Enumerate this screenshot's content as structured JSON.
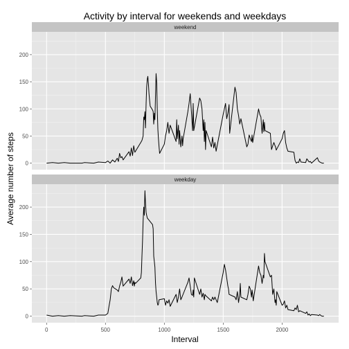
{
  "chart_data": {
    "type": "line",
    "title": "Activity by interval for weekends and weekdays",
    "xlabel": "Interval",
    "ylabel": "Average number of steps",
    "xlim": [
      -125,
      2480
    ],
    "ylim": [
      -12,
      242
    ],
    "x_ticks": [
      0,
      500,
      1000,
      1500,
      2000
    ],
    "y_ticks": [
      0,
      50,
      100,
      150,
      200
    ],
    "grid": true,
    "facet_layout": "stacked-vertical",
    "line_color": "#000000",
    "panels": [
      {
        "strip_label": "weekend",
        "points": [
          [
            0,
            0
          ],
          [
            50,
            1
          ],
          [
            100,
            0
          ],
          [
            150,
            1
          ],
          [
            200,
            0
          ],
          [
            300,
            0
          ],
          [
            320,
            1
          ],
          [
            400,
            0
          ],
          [
            440,
            2
          ],
          [
            500,
            1
          ],
          [
            520,
            4
          ],
          [
            540,
            0
          ],
          [
            560,
            6
          ],
          [
            580,
            2
          ],
          [
            600,
            9
          ],
          [
            610,
            3
          ],
          [
            620,
            18
          ],
          [
            630,
            10
          ],
          [
            640,
            12
          ],
          [
            650,
            6
          ],
          [
            700,
            21
          ],
          [
            710,
            13
          ],
          [
            720,
            28
          ],
          [
            730,
            14
          ],
          [
            740,
            32
          ],
          [
            750,
            20
          ],
          [
            800,
            38
          ],
          [
            810,
            42
          ],
          [
            820,
            50
          ],
          [
            825,
            85
          ],
          [
            830,
            80
          ],
          [
            835,
            95
          ],
          [
            840,
            65
          ],
          [
            845,
            110
          ],
          [
            850,
            140
          ],
          [
            855,
            155
          ],
          [
            860,
            160
          ],
          [
            865,
            145
          ],
          [
            870,
            128
          ],
          [
            875,
            115
          ],
          [
            880,
            105
          ],
          [
            900,
            98
          ],
          [
            905,
            95
          ],
          [
            910,
            72
          ],
          [
            915,
            92
          ],
          [
            920,
            80
          ],
          [
            930,
            165
          ],
          [
            935,
            148
          ],
          [
            940,
            100
          ],
          [
            945,
            62
          ],
          [
            950,
            45
          ],
          [
            955,
            30
          ],
          [
            960,
            18
          ],
          [
            1000,
            35
          ],
          [
            1010,
            50
          ],
          [
            1020,
            60
          ],
          [
            1030,
            75
          ],
          [
            1040,
            55
          ],
          [
            1050,
            70
          ],
          [
            1100,
            40
          ],
          [
            1105,
            80
          ],
          [
            1110,
            45
          ],
          [
            1120,
            70
          ],
          [
            1125,
            35
          ],
          [
            1130,
            60
          ],
          [
            1140,
            30
          ],
          [
            1150,
            50
          ],
          [
            1155,
            32
          ],
          [
            1160,
            45
          ],
          [
            1200,
            95
          ],
          [
            1210,
            110
          ],
          [
            1220,
            128
          ],
          [
            1230,
            95
          ],
          [
            1240,
            60
          ],
          [
            1245,
            110
          ],
          [
            1250,
            60
          ],
          [
            1300,
            120
          ],
          [
            1310,
            115
          ],
          [
            1320,
            100
          ],
          [
            1330,
            60
          ],
          [
            1335,
            80
          ],
          [
            1340,
            40
          ],
          [
            1345,
            75
          ],
          [
            1350,
            25
          ],
          [
            1355,
            60
          ],
          [
            1400,
            30
          ],
          [
            1410,
            48
          ],
          [
            1420,
            28
          ],
          [
            1430,
            38
          ],
          [
            1440,
            22
          ],
          [
            1500,
            90
          ],
          [
            1510,
            100
          ],
          [
            1520,
            110
          ],
          [
            1530,
            82
          ],
          [
            1540,
            92
          ],
          [
            1545,
            100
          ],
          [
            1550,
            108
          ],
          [
            1555,
            55
          ],
          [
            1600,
            140
          ],
          [
            1610,
            130
          ],
          [
            1620,
            100
          ],
          [
            1630,
            88
          ],
          [
            1640,
            72
          ],
          [
            1650,
            82
          ],
          [
            1700,
            30
          ],
          [
            1710,
            35
          ],
          [
            1720,
            52
          ],
          [
            1730,
            45
          ],
          [
            1740,
            40
          ],
          [
            1745,
            52
          ],
          [
            1750,
            38
          ],
          [
            1800,
            100
          ],
          [
            1810,
            90
          ],
          [
            1820,
            85
          ],
          [
            1830,
            55
          ],
          [
            1840,
            80
          ],
          [
            1845,
            58
          ],
          [
            1850,
            75
          ],
          [
            1855,
            60
          ],
          [
            1900,
            55
          ],
          [
            1910,
            25
          ],
          [
            1920,
            32
          ],
          [
            1930,
            38
          ],
          [
            1940,
            32
          ],
          [
            1945,
            30
          ],
          [
            1950,
            24
          ],
          [
            2000,
            45
          ],
          [
            2010,
            55
          ],
          [
            2020,
            60
          ],
          [
            2030,
            38
          ],
          [
            2040,
            28
          ],
          [
            2050,
            22
          ],
          [
            2100,
            20
          ],
          [
            2110,
            5
          ],
          [
            2120,
            0
          ],
          [
            2130,
            2
          ],
          [
            2140,
            1
          ],
          [
            2150,
            8
          ],
          [
            2160,
            2
          ],
          [
            2200,
            1
          ],
          [
            2210,
            8
          ],
          [
            2220,
            5
          ],
          [
            2230,
            2
          ],
          [
            2240,
            3
          ],
          [
            2250,
            0
          ],
          [
            2300,
            10
          ],
          [
            2310,
            4
          ],
          [
            2320,
            2
          ],
          [
            2330,
            1
          ],
          [
            2340,
            0
          ],
          [
            2355,
            0
          ]
        ]
      },
      {
        "strip_label": "weekday",
        "points": [
          [
            0,
            2
          ],
          [
            50,
            0
          ],
          [
            100,
            1
          ],
          [
            150,
            0
          ],
          [
            200,
            1
          ],
          [
            300,
            0
          ],
          [
            320,
            1
          ],
          [
            400,
            0
          ],
          [
            440,
            2
          ],
          [
            500,
            2
          ],
          [
            520,
            5
          ],
          [
            530,
            18
          ],
          [
            540,
            30
          ],
          [
            550,
            50
          ],
          [
            560,
            56
          ],
          [
            570,
            52
          ],
          [
            600,
            48
          ],
          [
            610,
            45
          ],
          [
            620,
            55
          ],
          [
            630,
            62
          ],
          [
            640,
            72
          ],
          [
            650,
            55
          ],
          [
            700,
            68
          ],
          [
            710,
            60
          ],
          [
            720,
            72
          ],
          [
            730,
            56
          ],
          [
            740,
            65
          ],
          [
            745,
            55
          ],
          [
            750,
            62
          ],
          [
            755,
            60
          ],
          [
            800,
            70
          ],
          [
            805,
            80
          ],
          [
            810,
            110
          ],
          [
            815,
            140
          ],
          [
            820,
            175
          ],
          [
            825,
            200
          ],
          [
            830,
            185
          ],
          [
            835,
            230
          ],
          [
            840,
            208
          ],
          [
            845,
            190
          ],
          [
            850,
            185
          ],
          [
            855,
            180
          ],
          [
            900,
            168
          ],
          [
            905,
            160
          ],
          [
            910,
            110
          ],
          [
            915,
            100
          ],
          [
            920,
            90
          ],
          [
            925,
            60
          ],
          [
            930,
            45
          ],
          [
            935,
            35
          ],
          [
            940,
            25
          ],
          [
            945,
            20
          ],
          [
            950,
            22
          ],
          [
            955,
            30
          ],
          [
            1000,
            32
          ],
          [
            1010,
            20
          ],
          [
            1020,
            28
          ],
          [
            1030,
            24
          ],
          [
            1040,
            30
          ],
          [
            1050,
            18
          ],
          [
            1100,
            40
          ],
          [
            1110,
            25
          ],
          [
            1120,
            35
          ],
          [
            1130,
            50
          ],
          [
            1140,
            30
          ],
          [
            1150,
            35
          ],
          [
            1200,
            62
          ],
          [
            1210,
            70
          ],
          [
            1220,
            55
          ],
          [
            1230,
            40
          ],
          [
            1240,
            38
          ],
          [
            1245,
            48
          ],
          [
            1250,
            35
          ],
          [
            1255,
            70
          ],
          [
            1300,
            40
          ],
          [
            1310,
            50
          ],
          [
            1320,
            35
          ],
          [
            1330,
            42
          ],
          [
            1340,
            30
          ],
          [
            1345,
            40
          ],
          [
            1350,
            38
          ],
          [
            1400,
            28
          ],
          [
            1410,
            35
          ],
          [
            1420,
            30
          ],
          [
            1430,
            35
          ],
          [
            1440,
            30
          ],
          [
            1450,
            25
          ],
          [
            1500,
            80
          ],
          [
            1510,
            95
          ],
          [
            1520,
            85
          ],
          [
            1530,
            70
          ],
          [
            1540,
            55
          ],
          [
            1545,
            50
          ],
          [
            1550,
            40
          ],
          [
            1600,
            35
          ],
          [
            1610,
            30
          ],
          [
            1620,
            45
          ],
          [
            1630,
            25
          ],
          [
            1640,
            40
          ],
          [
            1645,
            60
          ],
          [
            1650,
            35
          ],
          [
            1700,
            30
          ],
          [
            1710,
            40
          ],
          [
            1720,
            55
          ],
          [
            1730,
            50
          ],
          [
            1740,
            35
          ],
          [
            1745,
            48
          ],
          [
            1750,
            40
          ],
          [
            1755,
            28
          ],
          [
            1800,
            92
          ],
          [
            1810,
            80
          ],
          [
            1820,
            75
          ],
          [
            1830,
            60
          ],
          [
            1840,
            75
          ],
          [
            1845,
            70
          ],
          [
            1850,
            115
          ],
          [
            1855,
            100
          ],
          [
            1900,
            72
          ],
          [
            1910,
            75
          ],
          [
            1920,
            40
          ],
          [
            1930,
            50
          ],
          [
            1940,
            25
          ],
          [
            1945,
            30
          ],
          [
            1950,
            20
          ],
          [
            1955,
            45
          ],
          [
            2000,
            20
          ],
          [
            2010,
            22
          ],
          [
            2020,
            28
          ],
          [
            2030,
            15
          ],
          [
            2040,
            20
          ],
          [
            2050,
            12
          ],
          [
            2100,
            10
          ],
          [
            2110,
            15
          ],
          [
            2120,
            12
          ],
          [
            2130,
            20
          ],
          [
            2140,
            8
          ],
          [
            2150,
            10
          ],
          [
            2200,
            5
          ],
          [
            2210,
            8
          ],
          [
            2220,
            2
          ],
          [
            2230,
            4
          ],
          [
            2240,
            1
          ],
          [
            2250,
            3
          ],
          [
            2300,
            2
          ],
          [
            2310,
            1
          ],
          [
            2320,
            3
          ],
          [
            2330,
            1
          ],
          [
            2340,
            0
          ],
          [
            2355,
            0
          ]
        ]
      }
    ]
  }
}
